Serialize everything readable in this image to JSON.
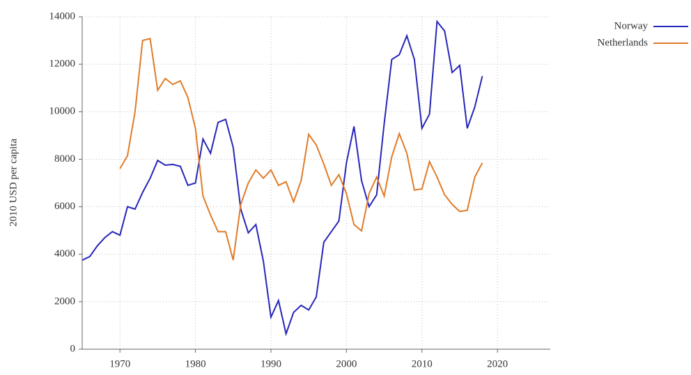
{
  "chart_data": {
    "type": "line",
    "ylabel": "2010 USD per capita",
    "x": [
      1965,
      1966,
      1967,
      1968,
      1969,
      1970,
      1971,
      1972,
      1973,
      1974,
      1975,
      1976,
      1977,
      1978,
      1979,
      1980,
      1981,
      1982,
      1983,
      1984,
      1985,
      1986,
      1987,
      1988,
      1989,
      1990,
      1991,
      1992,
      1993,
      1994,
      1995,
      1996,
      1997,
      1998,
      1999,
      2000,
      2001,
      2002,
      2003,
      2004,
      2005,
      2006,
      2007,
      2008,
      2009,
      2010,
      2011,
      2012,
      2013,
      2014,
      2015,
      2016,
      2017,
      2018
    ],
    "series": [
      {
        "name": "Norway",
        "color": "#2525b8",
        "values": [
          3750,
          3900,
          4350,
          4700,
          4950,
          4800,
          6000,
          5900,
          6600,
          7200,
          7950,
          7750,
          7780,
          7700,
          6900,
          7000,
          8850,
          8250,
          9550,
          9680,
          8500,
          5900,
          4900,
          5250,
          3700,
          1350,
          2050,
          650,
          1550,
          1850,
          1650,
          2200,
          4500,
          4950,
          5400,
          7850,
          9380,
          7100,
          6000,
          6500,
          9500,
          12200,
          12400,
          13200,
          12200,
          9300,
          9900,
          13800,
          13400,
          11650,
          11950,
          9300,
          10200,
          11500
        ]
      },
      {
        "name": "Netherlands",
        "color": "#e07b28",
        "values": [
          null,
          null,
          null,
          null,
          null,
          7600,
          8150,
          10000,
          13000,
          13080,
          10900,
          11400,
          11150,
          11300,
          10600,
          9300,
          6450,
          5650,
          4950,
          4950,
          3750,
          6100,
          7000,
          7550,
          7200,
          7550,
          6900,
          7050,
          6200,
          7100,
          9050,
          8600,
          7800,
          6900,
          7350,
          6550,
          5250,
          4980,
          6550,
          7250,
          6450,
          8100,
          9080,
          8250,
          6700,
          6750,
          7900,
          7250,
          6500,
          6100,
          5800,
          5850,
          7250,
          7850
        ]
      }
    ],
    "xlim": [
      1965,
      2027
    ],
    "xticks": [
      1970,
      1980,
      1990,
      2000,
      2010,
      2020
    ],
    "ylim": [
      0,
      14000
    ],
    "yticks": [
      0,
      2000,
      4000,
      6000,
      8000,
      10000,
      12000,
      14000
    ],
    "grid": true,
    "legend": "upper right"
  }
}
